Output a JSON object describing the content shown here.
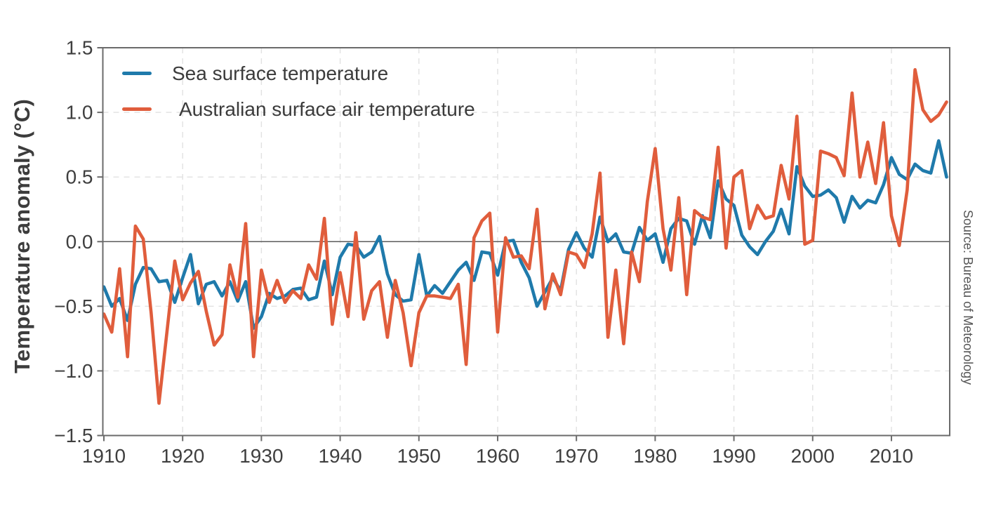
{
  "page": {
    "background": "#ffffff"
  },
  "chart_data": {
    "type": "line",
    "ylabel": "Temperature anomaly (°C)",
    "xlabel": "",
    "ylim": [
      -1.5,
      1.5
    ],
    "xlim": [
      1910,
      2017
    ],
    "grid": "light dashed gridlines at 0.5 intervals and each decade; solid thin line at 0.0; solid border around plot",
    "legend_position": "top-left-inside",
    "source_note": "Source: Bureau of Meteorology",
    "ytick_values": [
      1.5,
      1.0,
      0.5,
      0.0,
      -0.5,
      -1.0,
      -1.5
    ],
    "ytick_labels": [
      "1.5",
      "1.0",
      "0.5",
      "0.0",
      "−0.5",
      "−1.0",
      "−1.5"
    ],
    "xtick_values": [
      1910,
      1920,
      1930,
      1940,
      1950,
      1960,
      1970,
      1980,
      1990,
      2000,
      2010
    ],
    "x": [
      1910,
      1911,
      1912,
      1913,
      1914,
      1915,
      1916,
      1917,
      1918,
      1919,
      1920,
      1921,
      1922,
      1923,
      1924,
      1925,
      1926,
      1927,
      1928,
      1929,
      1930,
      1931,
      1932,
      1933,
      1934,
      1935,
      1936,
      1937,
      1938,
      1939,
      1940,
      1941,
      1942,
      1943,
      1944,
      1945,
      1946,
      1947,
      1948,
      1949,
      1950,
      1951,
      1952,
      1953,
      1954,
      1955,
      1956,
      1957,
      1958,
      1959,
      1960,
      1961,
      1962,
      1963,
      1964,
      1965,
      1966,
      1967,
      1968,
      1969,
      1970,
      1971,
      1972,
      1973,
      1974,
      1975,
      1976,
      1977,
      1978,
      1979,
      1980,
      1981,
      1982,
      1983,
      1984,
      1985,
      1986,
      1987,
      1988,
      1989,
      1990,
      1991,
      1992,
      1993,
      1994,
      1995,
      1996,
      1997,
      1998,
      1999,
      2000,
      2001,
      2002,
      2003,
      2004,
      2005,
      2006,
      2007,
      2008,
      2009,
      2010,
      2011,
      2012,
      2013,
      2014,
      2015,
      2016,
      2017
    ],
    "series": [
      {
        "name": "Sea surface temperature",
        "color": "#1f7aab",
        "values": [
          -0.35,
          -0.5,
          -0.44,
          -0.61,
          -0.33,
          -0.2,
          -0.21,
          -0.31,
          -0.3,
          -0.47,
          -0.28,
          -0.1,
          -0.48,
          -0.33,
          -0.31,
          -0.42,
          -0.31,
          -0.46,
          -0.31,
          -0.67,
          -0.58,
          -0.4,
          -0.44,
          -0.42,
          -0.37,
          -0.36,
          -0.45,
          -0.43,
          -0.15,
          -0.41,
          -0.12,
          -0.02,
          -0.03,
          -0.12,
          -0.08,
          0.04,
          -0.25,
          -0.41,
          -0.46,
          -0.45,
          -0.1,
          -0.42,
          -0.34,
          -0.4,
          -0.31,
          -0.22,
          -0.16,
          -0.3,
          -0.08,
          -0.09,
          -0.26,
          0.0,
          0.01,
          -0.16,
          -0.28,
          -0.5,
          -0.39,
          -0.28,
          -0.38,
          -0.06,
          0.07,
          -0.05,
          -0.12,
          0.19,
          0.0,
          0.06,
          -0.08,
          -0.09,
          0.11,
          0.01,
          0.06,
          -0.16,
          0.1,
          0.18,
          0.16,
          -0.02,
          0.2,
          0.03,
          0.47,
          0.33,
          0.28,
          0.05,
          -0.04,
          -0.1,
          0.0,
          0.08,
          0.25,
          0.06,
          0.58,
          0.43,
          0.35,
          0.36,
          0.4,
          0.34,
          0.15,
          0.35,
          0.26,
          0.32,
          0.3,
          0.44,
          0.65,
          0.52,
          0.48,
          0.6,
          0.55,
          0.53,
          0.78,
          0.5
        ]
      },
      {
        "name": "Australian surface air temperature",
        "color": "#e05d3c",
        "values": [
          -0.56,
          -0.7,
          -0.21,
          -0.89,
          0.12,
          0.02,
          -0.55,
          -1.25,
          -0.7,
          -0.15,
          -0.45,
          -0.32,
          -0.23,
          -0.54,
          -0.8,
          -0.72,
          -0.18,
          -0.43,
          0.14,
          -0.89,
          -0.22,
          -0.47,
          -0.3,
          -0.47,
          -0.38,
          -0.44,
          -0.18,
          -0.29,
          0.18,
          -0.64,
          -0.24,
          -0.58,
          0.07,
          -0.6,
          -0.38,
          -0.31,
          -0.74,
          -0.3,
          -0.55,
          -0.96,
          -0.55,
          -0.42,
          -0.42,
          -0.43,
          -0.44,
          -0.33,
          -0.95,
          0.03,
          0.16,
          0.22,
          -0.7,
          0.03,
          -0.12,
          -0.11,
          -0.21,
          0.25,
          -0.52,
          -0.25,
          -0.41,
          -0.08,
          -0.1,
          -0.2,
          0.06,
          0.53,
          -0.74,
          -0.22,
          -0.79,
          -0.08,
          -0.31,
          0.31,
          0.72,
          0.1,
          -0.22,
          0.34,
          -0.41,
          0.24,
          0.19,
          0.17,
          0.73,
          -0.05,
          0.5,
          0.55,
          0.1,
          0.28,
          0.18,
          0.2,
          0.59,
          0.33,
          0.97,
          -0.02,
          0.01,
          0.7,
          0.68,
          0.65,
          0.51,
          1.15,
          0.5,
          0.77,
          0.45,
          0.92,
          0.2,
          -0.03,
          0.4,
          1.33,
          1.02,
          0.93,
          0.98,
          1.08
        ]
      }
    ]
  }
}
